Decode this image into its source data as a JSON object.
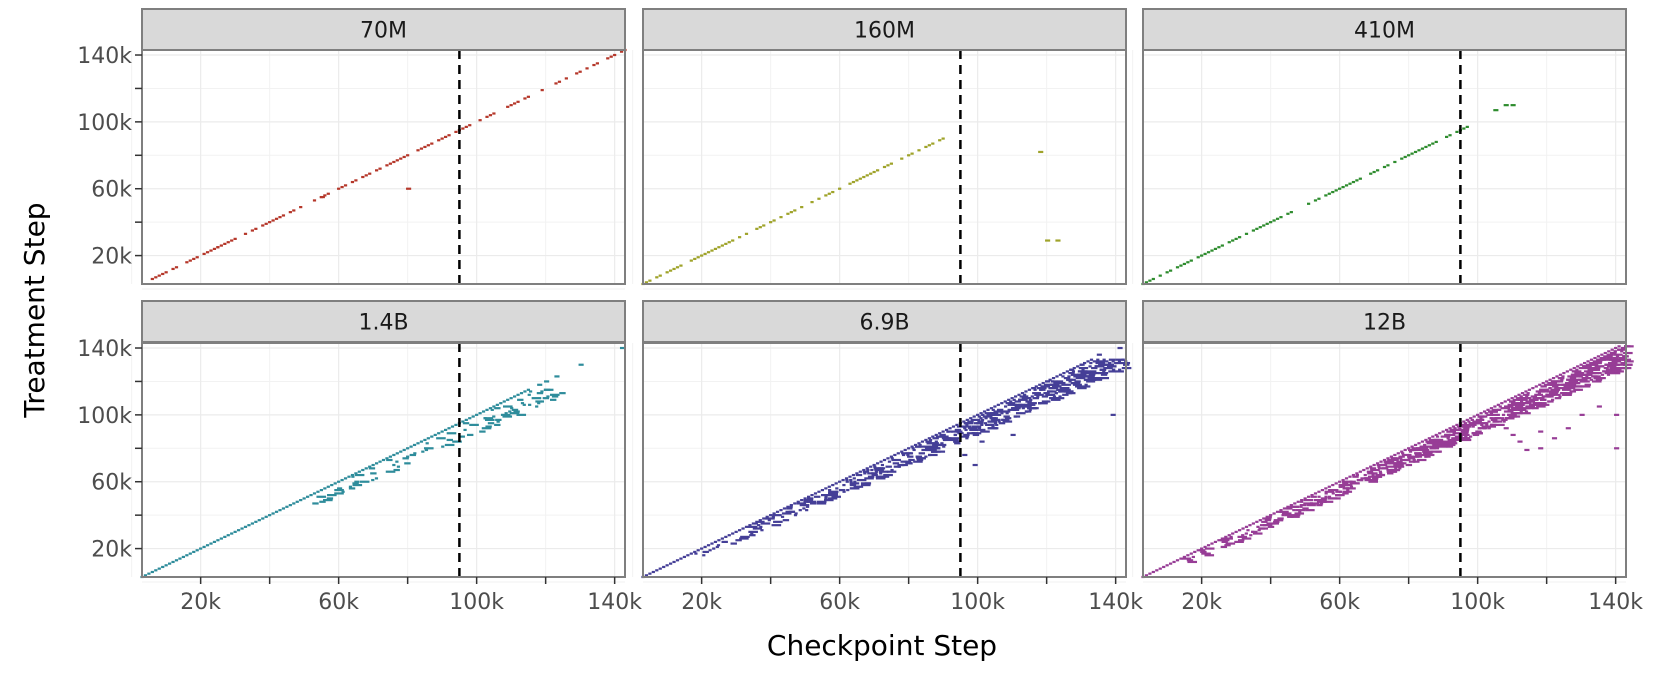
{
  "chart_data": {
    "type": "scatter",
    "xlabel": "Checkpoint Step",
    "ylabel": "Treatment Step",
    "x_ticks": [
      20000,
      60000,
      100000,
      140000
    ],
    "x_tick_labels": [
      "20k",
      "60k",
      "100k",
      "140k"
    ],
    "y_ticks": [
      20000,
      60000,
      100000,
      140000
    ],
    "y_tick_labels": [
      "20k",
      "60k",
      "100k",
      "140k"
    ],
    "xlim": [
      3000,
      143000
    ],
    "ylim": [
      3000,
      143000
    ],
    "vline_x": 95000,
    "grid": true,
    "panels": [
      {
        "name": "70M",
        "color": "#b5372a",
        "diagonal": [
          [
            6000,
            143000
          ],
          [
            22000,
            26000
          ],
          [
            42000,
            47000
          ]
        ],
        "spread": 0,
        "extra_points": [
          [
            55000,
            55000
          ],
          [
            80000,
            60000
          ]
        ]
      },
      {
        "name": "160M",
        "color": "#9fa32a",
        "diagonal": [
          [
            3000,
            90000
          ]
        ],
        "spread": 0,
        "extra_points": [
          [
            118000,
            82000
          ],
          [
            120000,
            29000
          ],
          [
            123000,
            29000
          ]
        ]
      },
      {
        "name": "410M",
        "color": "#2e8c2e",
        "diagonal": [
          [
            3000,
            97000
          ]
        ],
        "spread": 0,
        "extra_points": [
          [
            105000,
            107000
          ],
          [
            108000,
            110000
          ],
          [
            110000,
            110000
          ]
        ]
      },
      {
        "name": "1.4B",
        "color": "#2e8c9b",
        "diagonal": [
          [
            3000,
            115000
          ]
        ],
        "spread": 1,
        "extra_points": [
          [
            120000,
            120000
          ],
          [
            123000,
            123000
          ],
          [
            130000,
            130000
          ],
          [
            142000,
            140000
          ],
          [
            65000,
            60000
          ],
          [
            60000,
            56000
          ],
          [
            118000,
            118000
          ]
        ]
      },
      {
        "name": "6.9B",
        "color": "#453f97",
        "diagonal": [
          [
            3000,
            133000
          ]
        ],
        "spread": 3,
        "extra_points": [
          [
            96000,
            76000
          ],
          [
            99000,
            70000
          ],
          [
            101000,
            84000
          ],
          [
            110000,
            88000
          ],
          [
            116000,
            116000
          ],
          [
            120000,
            120000
          ],
          [
            127000,
            127000
          ],
          [
            130000,
            130000
          ],
          [
            135000,
            136000
          ],
          [
            141000,
            140000
          ],
          [
            139000,
            100000
          ],
          [
            100000,
            95000
          ],
          [
            105000,
            92000
          ]
        ]
      },
      {
        "name": "12B",
        "color": "#973d96",
        "diagonal": [
          [
            3000,
            141000
          ]
        ],
        "spread": 4,
        "extra_points": [
          [
            104000,
            94000
          ],
          [
            108000,
            92000
          ],
          [
            110000,
            88000
          ],
          [
            112000,
            84000
          ],
          [
            118000,
            90000
          ],
          [
            122000,
            86000
          ],
          [
            126000,
            92000
          ],
          [
            130000,
            100000
          ],
          [
            140000,
            100000
          ],
          [
            135000,
            105000
          ],
          [
            140000,
            80000
          ],
          [
            118000,
            80000
          ],
          [
            114000,
            79000
          ],
          [
            125000,
            116000
          ],
          [
            130000,
            120000
          ],
          [
            137000,
            128000
          ],
          [
            140000,
            130000
          ],
          [
            142000,
            140000
          ]
        ]
      }
    ]
  }
}
